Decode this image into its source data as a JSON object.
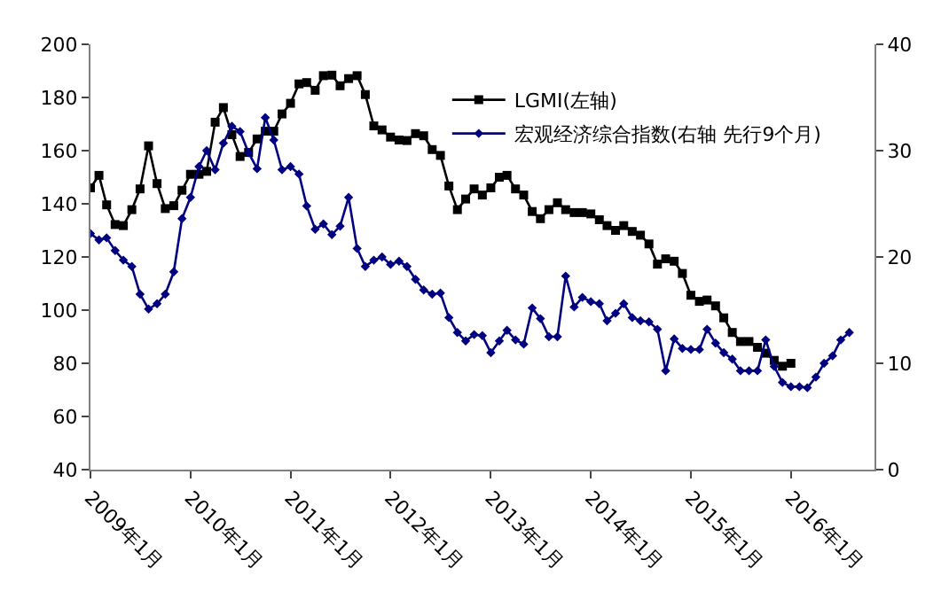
{
  "chart_data": {
    "type": "line",
    "x": [
      "2009-01",
      "2009-02",
      "2009-03",
      "2009-04",
      "2009-05",
      "2009-06",
      "2009-07",
      "2009-08",
      "2009-09",
      "2009-10",
      "2009-11",
      "2009-12",
      "2010-01",
      "2010-02",
      "2010-03",
      "2010-04",
      "2010-05",
      "2010-06",
      "2010-07",
      "2010-08",
      "2010-09",
      "2010-10",
      "2010-11",
      "2010-12",
      "2011-01",
      "2011-02",
      "2011-03",
      "2011-04",
      "2011-05",
      "2011-06",
      "2011-07",
      "2011-08",
      "2011-09",
      "2011-10",
      "2011-11",
      "2011-12",
      "2012-01",
      "2012-02",
      "2012-03",
      "2012-04",
      "2012-05",
      "2012-06",
      "2012-07",
      "2012-08",
      "2012-09",
      "2012-10",
      "2012-11",
      "2012-12",
      "2013-01",
      "2013-02",
      "2013-03",
      "2013-04",
      "2013-05",
      "2013-06",
      "2013-07",
      "2013-08",
      "2013-09",
      "2013-10",
      "2013-11",
      "2013-12",
      "2014-01",
      "2014-02",
      "2014-03",
      "2014-04",
      "2014-05",
      "2014-06",
      "2014-07",
      "2014-08",
      "2014-09",
      "2014-10",
      "2014-11",
      "2014-12",
      "2015-01",
      "2015-02",
      "2015-03",
      "2015-04",
      "2015-05",
      "2015-06",
      "2015-07",
      "2015-08",
      "2015-09",
      "2015-10",
      "2015-11",
      "2015-12",
      "2016-01",
      "2016-02",
      "2016-03",
      "2016-04",
      "2016-05",
      "2016-06",
      "2016-07",
      "2016-08"
    ],
    "series": [
      {
        "name": "LGMI(左轴)",
        "color": "#000000",
        "marker": "square",
        "axis": "y",
        "values": [
          146,
          150.7,
          139.6,
          132.2,
          131.8,
          137.8,
          145.6,
          161.8,
          147.6,
          138.2,
          139.3,
          145.1,
          151.1,
          151.1,
          152.2,
          170.7,
          176.2,
          166,
          157.8,
          159.3,
          164.4,
          167.3,
          167.3,
          173.8,
          177.8,
          185.1,
          185.6,
          182.7,
          188.2,
          188.4,
          184.4,
          187.1,
          188.2,
          181.1,
          169.3,
          167.8,
          165.1,
          164,
          163.8,
          166.4,
          165.6,
          160.4,
          158.2,
          146.7,
          137.8,
          141.8,
          145.6,
          143.3,
          146,
          150,
          150.7,
          145.6,
          143.3,
          137.1,
          134.4,
          137.8,
          140.4,
          137.8,
          136.7,
          136.7,
          136.2,
          134,
          131.8,
          130,
          131.8,
          129.6,
          128.2,
          124.9,
          117.3,
          119.3,
          118.4,
          113.8,
          105.6,
          103.3,
          103.8,
          101.6,
          97.1,
          91.6,
          88.2,
          88.2,
          86,
          83.8,
          81.1,
          78.9,
          80,
          null,
          null,
          null,
          null,
          null,
          null,
          null
        ]
      },
      {
        "name": "宏观经济综合指数(右轴 先行9个月)",
        "color": "#000080",
        "marker": "diamond",
        "axis": "y2",
        "values": [
          22.2,
          21.6,
          21.8,
          20.6,
          19.7,
          19.1,
          16.5,
          15.1,
          15.6,
          16.5,
          18.6,
          23.6,
          25.6,
          28.5,
          30,
          28.2,
          30.7,
          32.3,
          31.8,
          29.8,
          28.3,
          33.1,
          31,
          28.2,
          28.5,
          27.8,
          24.8,
          22.6,
          23.1,
          22.1,
          22.9,
          25.6,
          20.8,
          19.1,
          19.7,
          20,
          19.3,
          19.6,
          19.1,
          17.9,
          16.9,
          16.5,
          16.6,
          14.3,
          12.9,
          12.1,
          12.7,
          12.6,
          11,
          12.1,
          13.1,
          12.2,
          11.8,
          15.2,
          14.2,
          12.5,
          12.5,
          18.2,
          15.3,
          16.2,
          15.8,
          15.6,
          14,
          14.7,
          15.6,
          14.3,
          14,
          13.9,
          13.2,
          9.3,
          12.3,
          11.4,
          11.3,
          11.3,
          13.2,
          11.9,
          11,
          10.4,
          9.3,
          9.3,
          9.3,
          12.2,
          9.7,
          8.2,
          7.8,
          7.8,
          7.7,
          8.7,
          10,
          10.7,
          12.2,
          12.9
        ]
      }
    ],
    "xlim": [
      "2009-01",
      "2016-11"
    ],
    "xticks": [
      {
        "value": "2009-01",
        "label": "2009年1月"
      },
      {
        "value": "2010-01",
        "label": "2010年1月"
      },
      {
        "value": "2011-01",
        "label": "2011年1月"
      },
      {
        "value": "2012-01",
        "label": "2012年1月"
      },
      {
        "value": "2013-01",
        "label": "2013年1月"
      },
      {
        "value": "2014-01",
        "label": "2014年1月"
      },
      {
        "value": "2015-01",
        "label": "2015年1月"
      },
      {
        "value": "2016-01",
        "label": "2016年1月"
      }
    ],
    "ylim": [
      40,
      200
    ],
    "yticks": [
      40,
      60,
      80,
      100,
      120,
      140,
      160,
      180,
      200
    ],
    "y2lim": [
      0,
      40
    ],
    "y2ticks": [
      0,
      10,
      20,
      30,
      40
    ],
    "legend": "top right",
    "line_style": "solid"
  }
}
